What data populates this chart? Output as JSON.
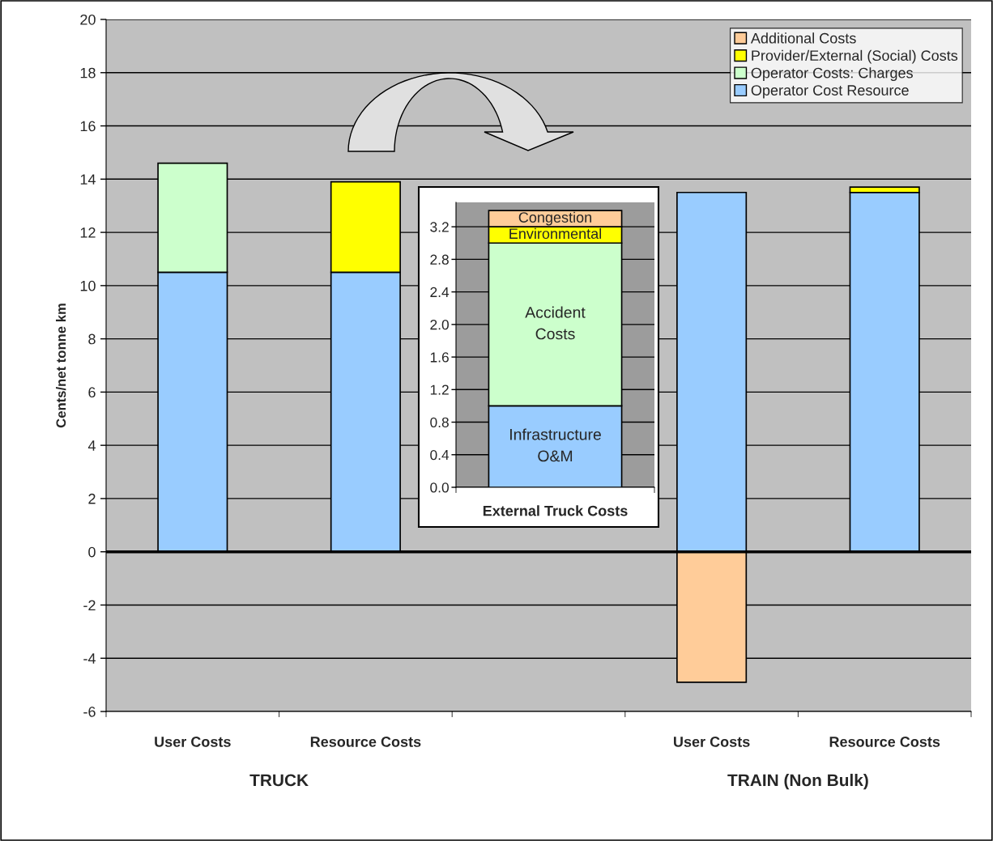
{
  "chart_data": [
    {
      "type": "bar",
      "stacked": true,
      "ylabel": "Cents/net tonne km",
      "categories": [
        "User Costs",
        "Resource Costs",
        null,
        "User Costs",
        "Resource Costs"
      ],
      "series": [
        {
          "name": "Operator Cost Resource",
          "color": "#99ccff",
          "values": [
            10.5,
            10.5,
            null,
            13.5,
            13.5
          ]
        },
        {
          "name": "Operator Costs: Charges",
          "color": "#ccffcc",
          "values": [
            4.1,
            null,
            null,
            null,
            null
          ]
        },
        {
          "name": "Provider/External (Social) Costs",
          "color": "#ffff00",
          "values": [
            null,
            3.4,
            null,
            null,
            0.2
          ]
        },
        {
          "name": "Additional Costs",
          "color": "#ffcc99",
          "values": [
            null,
            null,
            null,
            -4.9,
            null
          ]
        }
      ],
      "ylim": [
        -6,
        20
      ],
      "yticks": [
        -6,
        -4,
        -2,
        0,
        2,
        4,
        6,
        8,
        10,
        12,
        14,
        16,
        18,
        20
      ],
      "grid": "y",
      "legend": "top right",
      "annotations": [
        "TRUCK",
        "TRAIN (Non Bulk)"
      ]
    },
    {
      "type": "bar",
      "stacked": true,
      "categories": [
        "External Truck Costs"
      ],
      "series": [
        {
          "name": "Infrastructure O&M",
          "color": "#99ccff",
          "values": [
            1.0
          ]
        },
        {
          "name": "Accident Costs",
          "color": "#ccffcc",
          "values": [
            2.0
          ]
        },
        {
          "name": "Environmental",
          "color": "#ffff00",
          "values": [
            0.2
          ]
        },
        {
          "name": "Congestion",
          "color": "#ffcc99",
          "values": [
            0.2
          ]
        }
      ],
      "ylim": [
        0,
        3.5
      ],
      "yticks": [
        {
          "value": 0,
          "label": "0.0"
        },
        0.4,
        0.8,
        1.2,
        1.6,
        {
          "value": 2,
          "label": "2.0"
        },
        2.4,
        2.8,
        3.2
      ],
      "grid": "y"
    }
  ]
}
